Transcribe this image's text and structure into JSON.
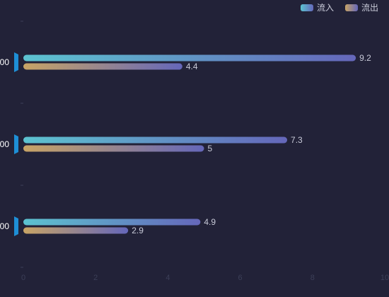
{
  "chart_data": {
    "type": "bar",
    "orientation": "horizontal",
    "categories": [
      "00",
      "00",
      "00"
    ],
    "series": [
      {
        "name": "流入",
        "values": [
          9.2,
          7.3,
          4.9
        ]
      },
      {
        "name": "流出",
        "values": [
          4.4,
          5,
          2.9
        ]
      }
    ],
    "xlim": [
      0,
      10
    ],
    "x_ticks": [
      "0",
      "2",
      "4",
      "6",
      "8",
      "10"
    ],
    "legend": [
      "流入",
      "流出"
    ],
    "legend_position": "top-right",
    "grid": false,
    "colors": {
      "background": "#222238",
      "inflow_start": "#5cc3d0",
      "inflow_end": "#6567ba",
      "outflow_start": "#c8a465",
      "outflow_end": "#6567ba",
      "category_marker": "#1e8fd6",
      "axis_tick": "#3c3f58"
    }
  }
}
